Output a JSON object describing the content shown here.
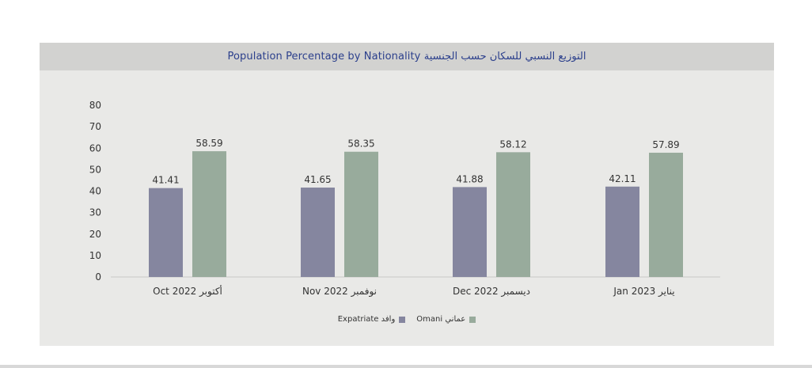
{
  "chart_data": {
    "type": "bar",
    "title": "Population Percentage by Nationality التوزيع النسبي للسكان حسب الجنسية",
    "categories": [
      "Oct 2022 أكتوبر",
      "Nov 2022 نوفمبر",
      "Dec 2022 ديسمبر",
      "Jan 2023 يناير"
    ],
    "series": [
      {
        "name": "Expatriate وافد",
        "color": "#85869f",
        "values": [
          41.41,
          41.65,
          41.88,
          42.11
        ]
      },
      {
        "name": "Omani عماني",
        "color": "#98ab9c",
        "values": [
          58.59,
          58.35,
          58.12,
          57.89
        ]
      }
    ],
    "yticks": [
      0,
      10,
      20,
      30,
      40,
      50,
      60,
      70,
      80
    ],
    "ylim": [
      0,
      80
    ],
    "xlabel": "",
    "ylabel": "",
    "grid": false,
    "legend_position": "bottom"
  },
  "legend": {
    "omani_label": "Omani عماني",
    "expatriate_label": "Expatriate وافد"
  },
  "colors": {
    "expatriate": "#85869f",
    "omani": "#98ab9c",
    "title": "#2b3f8c"
  }
}
